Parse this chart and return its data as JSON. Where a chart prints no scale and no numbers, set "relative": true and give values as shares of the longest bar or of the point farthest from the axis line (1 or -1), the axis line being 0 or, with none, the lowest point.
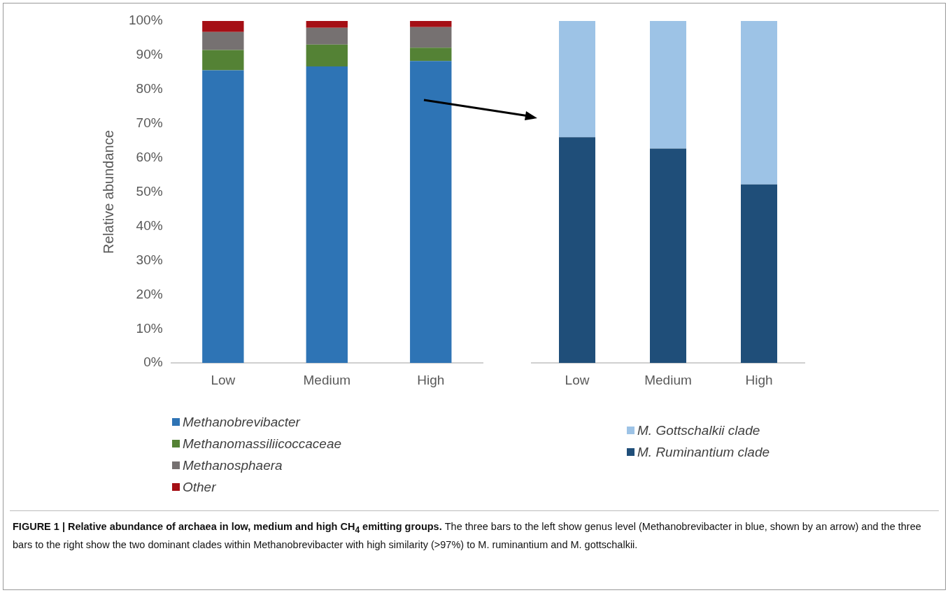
{
  "chart_data": [
    {
      "type": "bar",
      "ylabel": "Relative abundance",
      "categories": [
        "Low",
        "Medium",
        "High"
      ],
      "stacked": true,
      "ylim": [
        0,
        100
      ],
      "yticks": [
        {
          "value": 0,
          "label": "0%"
        },
        {
          "value": 10,
          "label": "10%"
        },
        {
          "value": 20,
          "label": "20%"
        },
        {
          "value": 30,
          "label": "30%"
        },
        {
          "value": 40,
          "label": "40%"
        },
        {
          "value": 50,
          "label": "50%"
        },
        {
          "value": 60,
          "label": "60%"
        },
        {
          "value": 70,
          "label": "70%"
        },
        {
          "value": 80,
          "label": "80%"
        },
        {
          "value": 90,
          "label": "90%"
        },
        {
          "value": 100,
          "label": "100%"
        }
      ],
      "grid": false,
      "legend": "bottom",
      "series": [
        {
          "name": "Methanobrevibacter",
          "color": "#2e74b5",
          "values": [
            85.6,
            86.7,
            88.3
          ]
        },
        {
          "name": "Methanomassiliicoccaceae",
          "color": "#548235",
          "values": [
            5.9,
            6.4,
            3.9
          ]
        },
        {
          "name": "Methanosphaera",
          "color": "#767171",
          "values": [
            5.3,
            4.9,
            6.0
          ]
        },
        {
          "name": "Other",
          "color": "#a50f15",
          "values": [
            3.2,
            2.0,
            1.8
          ]
        }
      ],
      "annotations": [
        "FIGURE 1 | Relative abundance of archaea in low, medium and high CH$_{4}$ emitting groups.",
        "The three bars to the left show genus level (Methanobrevibacter in blue, shown by an arrow) and the three bars to the right show the two dominant clades within Methanobrevibacter with high similarity (>97%) to M. ruminantium and M. gottschalkii."
      ]
    },
    {
      "type": "bar",
      "categories": [
        "Low",
        "Medium",
        "High"
      ],
      "stacked": true,
      "relative": true,
      "grid": false,
      "legend": "bottom",
      "series": [
        {
          "name": "M. Ruminantium clade",
          "color": "#1f4e79",
          "values": [
            0.66,
            0.627,
            0.522
          ]
        },
        {
          "name": "M. Gottschalkii clade",
          "color": "#9dc3e6",
          "values": [
            0.34,
            0.373,
            0.478
          ]
        }
      ]
    }
  ]
}
